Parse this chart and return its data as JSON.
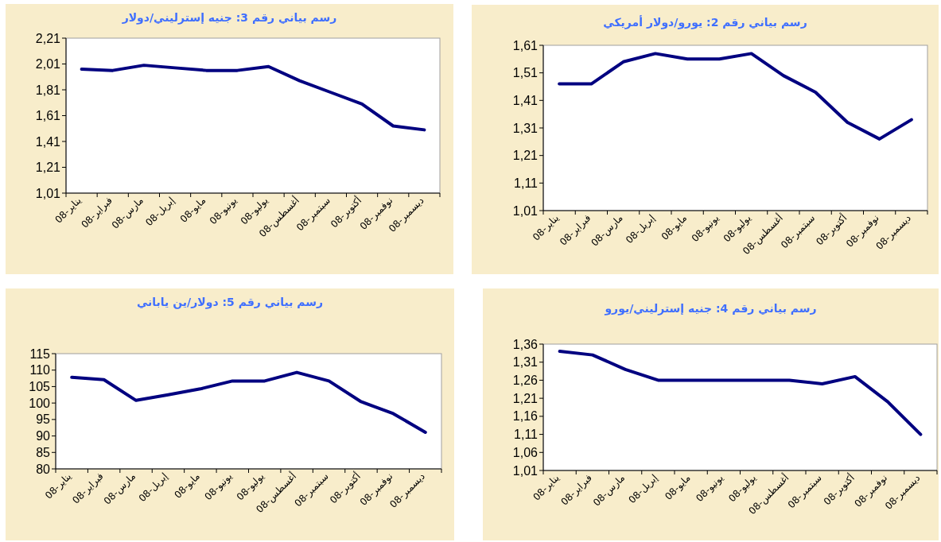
{
  "chart_data": [
    {
      "type": "line",
      "title": "رسم بياني رقم 3: جنيه إسترليني/دولار",
      "categories": [
        "يناير-08",
        "فبراير-08",
        "مارس-08",
        "إبريل-08",
        "مايو-08",
        "يونيو-08",
        "يوليو-08",
        "أغسطس-08",
        "سبتمبر-08",
        "أكتوبر-08",
        "نوفمبر-08",
        "ديسمبر-08"
      ],
      "values": [
        1.97,
        1.96,
        2.0,
        1.98,
        1.96,
        1.96,
        1.99,
        1.88,
        1.79,
        1.7,
        1.53,
        1.5
      ],
      "color": "#000080",
      "line_style": "solid",
      "ylim": [
        1.01,
        2.21
      ],
      "yticks": [
        {
          "value": 1.01,
          "label": "1,01"
        },
        {
          "value": 1.21,
          "label": "1,21"
        },
        {
          "value": 1.41,
          "label": "1,41"
        },
        {
          "value": 1.61,
          "label": "1,61"
        },
        {
          "value": 1.81,
          "label": "1,81"
        },
        {
          "value": 2.01,
          "label": "2,01"
        },
        {
          "value": 2.21,
          "label": "2,21"
        }
      ]
    },
    {
      "type": "line",
      "title": "رسم بياني رقم 2: يورو/دولار أمريكي",
      "categories": [
        "يناير-08",
        "فبراير-08",
        "مارس-08",
        "إبريل-08",
        "مايو-08",
        "يونيو-08",
        "يوليو-08",
        "أغسطس-08",
        "سبتمبر-08",
        "أكتوبر-08",
        "نوفمبر-08",
        "ديسمبر-08"
      ],
      "values": [
        1.47,
        1.47,
        1.55,
        1.58,
        1.56,
        1.56,
        1.58,
        1.5,
        1.44,
        1.33,
        1.27,
        1.34
      ],
      "color": "#000080",
      "line_style": "solid",
      "ylim": [
        1.01,
        1.61
      ],
      "yticks": [
        {
          "value": 1.01,
          "label": "1,01"
        },
        {
          "value": 1.11,
          "label": "1,11"
        },
        {
          "value": 1.21,
          "label": "1,21"
        },
        {
          "value": 1.31,
          "label": "1,31"
        },
        {
          "value": 1.41,
          "label": "1,41"
        },
        {
          "value": 1.51,
          "label": "1,51"
        },
        {
          "value": 1.61,
          "label": "1,61"
        }
      ]
    },
    {
      "type": "line",
      "title": "رسم بياني رقم 5: دولار/ين ياباني",
      "categories": [
        "يناير-08",
        "فبراير-08",
        "مارس-08",
        "إبريل-08",
        "مايو-08",
        "يونيو-08",
        "يوليو-08",
        "أغسطس-08",
        "سبتمبر-08",
        "أكتوبر-08",
        "نوفمبر-08",
        "ديسمبر-08"
      ],
      "values": [
        107.8,
        107.1,
        100.8,
        102.5,
        104.3,
        106.7,
        106.7,
        109.3,
        106.7,
        100.4,
        96.8,
        91.1
      ],
      "color": "#000080",
      "line_style": "solid",
      "ylim": [
        80,
        115
      ],
      "yticks": [
        80,
        85,
        90,
        95,
        100,
        105,
        110,
        115
      ]
    },
    {
      "type": "line",
      "title": "رسم بياني رقم 4: جنيه إسترليني/يورو",
      "categories": [
        "يناير-08",
        "فبراير-08",
        "مارس-08",
        "إبريل-08",
        "مايو-08",
        "يونيو-08",
        "يوليو-08",
        "أغسطس-08",
        "سبتمبر-08",
        "أكتوبر-08",
        "نوفمبر-08",
        "ديسمبر-08"
      ],
      "values": [
        1.34,
        1.33,
        1.29,
        1.26,
        1.26,
        1.26,
        1.26,
        1.26,
        1.25,
        1.27,
        1.2,
        1.11
      ],
      "color": "#000080",
      "line_style": "solid",
      "ylim": [
        1.01,
        1.36
      ],
      "yticks": [
        {
          "value": 1.01,
          "label": "1,01"
        },
        {
          "value": 1.06,
          "label": "1,06"
        },
        {
          "value": 1.11,
          "label": "1,11"
        },
        {
          "value": 1.16,
          "label": "1,16"
        },
        {
          "value": 1.21,
          "label": "1,21"
        },
        {
          "value": 1.26,
          "label": "1,26"
        },
        {
          "value": 1.31,
          "label": "1,31"
        },
        {
          "value": 1.36,
          "label": "1,36"
        }
      ]
    }
  ]
}
